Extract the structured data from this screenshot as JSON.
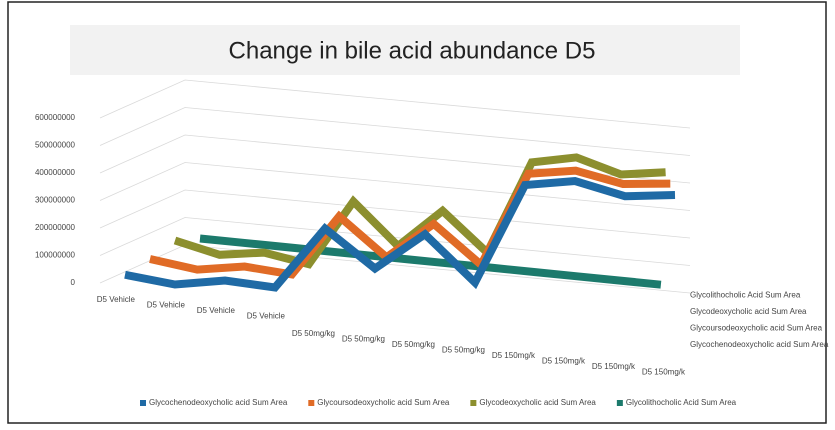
{
  "chart_data": {
    "type": "line3d",
    "title": "Change in bile acid abundance D5",
    "categories": [
      "D5 Vehicle",
      "D5 Vehicle",
      "D5 Vehicle",
      "D5 Vehicle",
      "D5 50mg/kg",
      "D5 50mg/kg",
      "D5 50mg/kg",
      "D5 50mg/kg",
      "D5 150mg/k",
      "D5 150mg/k",
      "D5 150mg/k",
      "D5 150mg/k"
    ],
    "series": [
      {
        "name": "Glycochenodeoxycholic acid Sum Area",
        "color": "#1f6aa5",
        "values": [
          30000000,
          0,
          20000000,
          0,
          220000000,
          80000000,
          210000000,
          40000000,
          400000000,
          420000000,
          370000000,
          380000000
        ]
      },
      {
        "name": "Glycoursodeoxycholic acid Sum Area",
        "color": "#e06b26",
        "values": [
          40000000,
          10000000,
          30000000,
          10000000,
          230000000,
          90000000,
          220000000,
          80000000,
          420000000,
          440000000,
          400000000,
          410000000
        ]
      },
      {
        "name": "Glycodeoxycholic acid Sum Area",
        "color": "#8c8f2e",
        "values": [
          60000000,
          20000000,
          40000000,
          10000000,
          250000000,
          100000000,
          240000000,
          100000000,
          440000000,
          470000000,
          420000000,
          440000000
        ]
      },
      {
        "name": "Glycolithocholic Acid Sum Area",
        "color": "#1c7a6c",
        "values": [
          20000000,
          20000000,
          20000000,
          20000000,
          20000000,
          20000000,
          20000000,
          20000000,
          20000000,
          20000000,
          20000000,
          20000000
        ]
      }
    ],
    "ylim": [
      0,
      600000000
    ],
    "yticks": [
      0,
      100000000,
      200000000,
      300000000,
      400000000,
      500000000,
      600000000
    ],
    "grid": true
  }
}
